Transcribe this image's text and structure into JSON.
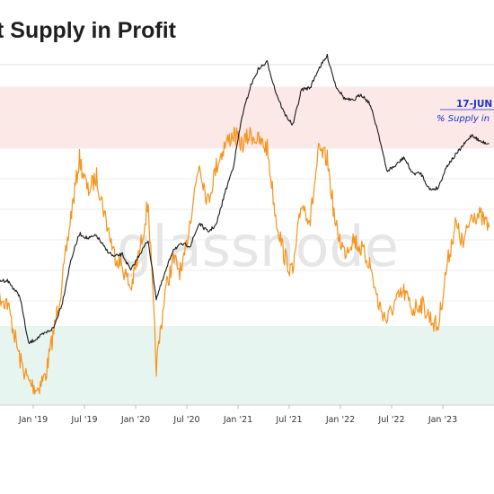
{
  "header": {
    "title": "t Supply in Profit"
  },
  "watermark": "glassnode",
  "annotation": {
    "date": "17-JUN",
    "text": "% Supply in"
  },
  "colors": {
    "price_line": "#1a1a1a",
    "supply_line": "#f7931a",
    "upper_band": "#fde8e8",
    "lower_band": "#e6f5ef",
    "annotation": "#1a33cc"
  },
  "chart_data": {
    "type": "line",
    "title": "t Supply in Profit",
    "x_ticks": [
      "Jan '19",
      "Jul '19",
      "Jan '20",
      "Jul '20",
      "Jan '21",
      "Jul '21",
      "Jan '22",
      "Jul '22",
      "Jan '23"
    ],
    "bands": [
      {
        "name": "upper",
        "y_range": [
          95,
          100
        ]
      },
      {
        "name": "lower",
        "y_range": [
          0,
          50
        ]
      }
    ],
    "series": [
      {
        "key": "supply",
        "points": [
          [
            "2018-07-01",
            60
          ],
          [
            "2018-08-15",
            55
          ],
          [
            "2018-10-01",
            52
          ],
          [
            "2018-11-15",
            36
          ],
          [
            "2018-12-15",
            30
          ],
          [
            "2019-01-15",
            28
          ],
          [
            "2019-02-15",
            32
          ],
          [
            "2019-03-15",
            44
          ],
          [
            "2019-04-15",
            58
          ],
          [
            "2019-05-15",
            76
          ],
          [
            "2019-06-15",
            92
          ],
          [
            "2019-07-15",
            83
          ],
          [
            "2019-08-15",
            87
          ],
          [
            "2019-09-15",
            76
          ],
          [
            "2019-10-15",
            66
          ],
          [
            "2019-11-15",
            62
          ],
          [
            "2019-12-15",
            56
          ],
          [
            "2020-01-15",
            66
          ],
          [
            "2020-02-15",
            80
          ],
          [
            "2020-03-15",
            34
          ],
          [
            "2020-04-15",
            55
          ],
          [
            "2020-05-15",
            64
          ],
          [
            "2020-06-15",
            60
          ],
          [
            "2020-07-15",
            76
          ],
          [
            "2020-08-15",
            91
          ],
          [
            "2020-09-15",
            80
          ],
          [
            "2020-10-15",
            90
          ],
          [
            "2020-11-15",
            96
          ],
          [
            "2020-12-15",
            99
          ],
          [
            "2021-01-15",
            96
          ],
          [
            "2021-02-15",
            99
          ],
          [
            "2021-03-15",
            97
          ],
          [
            "2021-04-15",
            95
          ],
          [
            "2021-05-15",
            76
          ],
          [
            "2021-06-15",
            65
          ],
          [
            "2021-07-15",
            60
          ],
          [
            "2021-08-15",
            80
          ],
          [
            "2021-09-15",
            75
          ],
          [
            "2021-10-15",
            94
          ],
          [
            "2021-11-15",
            92
          ],
          [
            "2021-12-15",
            73
          ],
          [
            "2022-01-15",
            66
          ],
          [
            "2022-02-15",
            70
          ],
          [
            "2022-03-15",
            67
          ],
          [
            "2022-04-15",
            63
          ],
          [
            "2022-05-15",
            52
          ],
          [
            "2022-06-15",
            47
          ],
          [
            "2022-07-15",
            52
          ],
          [
            "2022-08-15",
            55
          ],
          [
            "2022-09-15",
            50
          ],
          [
            "2022-10-15",
            52
          ],
          [
            "2022-11-15",
            48
          ],
          [
            "2022-12-15",
            45
          ],
          [
            "2023-01-15",
            62
          ],
          [
            "2023-02-15",
            74
          ],
          [
            "2023-03-15",
            68
          ],
          [
            "2023-04-15",
            77
          ],
          [
            "2023-05-15",
            76
          ],
          [
            "2023-06-15",
            73
          ]
        ]
      },
      {
        "key": "price",
        "points": [
          [
            "2018-07-01",
            6400
          ],
          [
            "2018-08-15",
            6500
          ],
          [
            "2018-10-01",
            6500
          ],
          [
            "2018-11-15",
            5500
          ],
          [
            "2018-12-15",
            3400
          ],
          [
            "2019-01-15",
            3600
          ],
          [
            "2019-02-15",
            3800
          ],
          [
            "2019-03-15",
            4000
          ],
          [
            "2019-04-15",
            5200
          ],
          [
            "2019-05-15",
            8000
          ],
          [
            "2019-06-15",
            10500
          ],
          [
            "2019-07-15",
            10000
          ],
          [
            "2019-08-15",
            10300
          ],
          [
            "2019-09-15",
            9000
          ],
          [
            "2019-10-15",
            8300
          ],
          [
            "2019-11-15",
            8500
          ],
          [
            "2019-12-15",
            7200
          ],
          [
            "2020-01-15",
            8500
          ],
          [
            "2020-02-15",
            9800
          ],
          [
            "2020-03-15",
            5400
          ],
          [
            "2020-04-15",
            7000
          ],
          [
            "2020-05-15",
            9000
          ],
          [
            "2020-06-15",
            9400
          ],
          [
            "2020-07-15",
            9300
          ],
          [
            "2020-08-15",
            11700
          ],
          [
            "2020-09-15",
            10700
          ],
          [
            "2020-10-15",
            11500
          ],
          [
            "2020-11-15",
            16000
          ],
          [
            "2020-12-15",
            21000
          ],
          [
            "2021-01-15",
            35000
          ],
          [
            "2021-02-15",
            48000
          ],
          [
            "2021-03-15",
            57000
          ],
          [
            "2021-04-15",
            61000
          ],
          [
            "2021-05-15",
            45000
          ],
          [
            "2021-06-15",
            36000
          ],
          [
            "2021-07-15",
            32000
          ],
          [
            "2021-08-15",
            46000
          ],
          [
            "2021-09-15",
            47000
          ],
          [
            "2021-10-15",
            57000
          ],
          [
            "2021-11-15",
            65000
          ],
          [
            "2021-12-15",
            48000
          ],
          [
            "2022-01-15",
            42000
          ],
          [
            "2022-02-15",
            41000
          ],
          [
            "2022-03-15",
            44000
          ],
          [
            "2022-04-15",
            40000
          ],
          [
            "2022-05-15",
            30000
          ],
          [
            "2022-06-15",
            20000
          ],
          [
            "2022-07-15",
            21000
          ],
          [
            "2022-08-15",
            23000
          ],
          [
            "2022-09-15",
            19500
          ],
          [
            "2022-10-15",
            19500
          ],
          [
            "2022-11-15",
            16500
          ],
          [
            "2022-12-15",
            16800
          ],
          [
            "2023-01-15",
            21000
          ],
          [
            "2023-02-15",
            23500
          ],
          [
            "2023-03-15",
            26000
          ],
          [
            "2023-04-15",
            29000
          ],
          [
            "2023-05-15",
            27000
          ],
          [
            "2023-06-15",
            26500
          ]
        ]
      }
    ]
  }
}
